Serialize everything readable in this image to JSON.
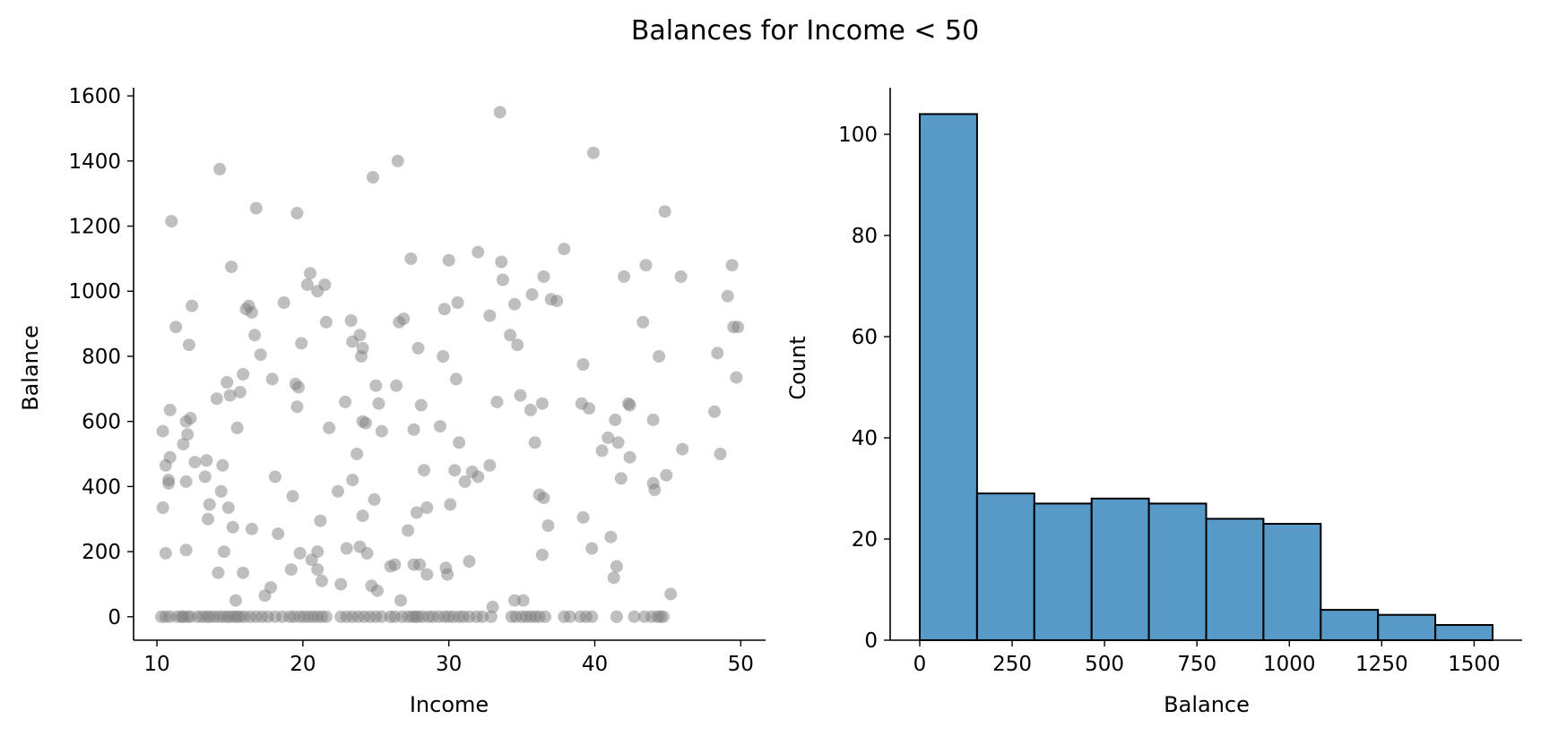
{
  "figure_title": "Balances for Income < 50",
  "chart_data": [
    {
      "type": "scatter",
      "xlabel": "Income",
      "ylabel": "Balance",
      "xlim": [
        8.4,
        51.7
      ],
      "ylim": [
        -72,
        1625
      ],
      "xticks": [
        10,
        20,
        30,
        40,
        50
      ],
      "yticks": [
        0,
        200,
        400,
        600,
        800,
        1000,
        1200,
        1400,
        1600
      ],
      "point_color": "#808080",
      "point_opacity": 0.5,
      "grid": false,
      "points": [
        [
          10.4,
          570
        ],
        [
          10.4,
          335
        ],
        [
          10.6,
          465
        ],
        [
          10.6,
          195
        ],
        [
          10.8,
          420
        ],
        [
          10.8,
          410
        ],
        [
          10.9,
          490
        ],
        [
          10.9,
          635
        ],
        [
          11.0,
          1215
        ],
        [
          11.3,
          890
        ],
        [
          11.8,
          530
        ],
        [
          12.0,
          600
        ],
        [
          12.0,
          415
        ],
        [
          12.0,
          205
        ],
        [
          12.1,
          560
        ],
        [
          12.2,
          835
        ],
        [
          12.3,
          610
        ],
        [
          12.4,
          955
        ],
        [
          12.6,
          475
        ],
        [
          13.3,
          430
        ],
        [
          13.4,
          480
        ],
        [
          13.5,
          300
        ],
        [
          13.6,
          345
        ],
        [
          14.1,
          670
        ],
        [
          14.2,
          135
        ],
        [
          14.3,
          1375
        ],
        [
          14.4,
          385
        ],
        [
          14.5,
          465
        ],
        [
          14.6,
          200
        ],
        [
          14.8,
          720
        ],
        [
          14.9,
          335
        ],
        [
          15.0,
          680
        ],
        [
          15.1,
          1075
        ],
        [
          15.2,
          275
        ],
        [
          15.4,
          50
        ],
        [
          15.5,
          580
        ],
        [
          15.7,
          690
        ],
        [
          15.9,
          745
        ],
        [
          15.9,
          135
        ],
        [
          16.1,
          945
        ],
        [
          16.3,
          955
        ],
        [
          16.5,
          935
        ],
        [
          16.5,
          270
        ],
        [
          16.7,
          865
        ],
        [
          16.8,
          1255
        ],
        [
          17.1,
          805
        ],
        [
          17.4,
          65
        ],
        [
          17.8,
          90
        ],
        [
          17.9,
          730
        ],
        [
          18.1,
          430
        ],
        [
          18.3,
          255
        ],
        [
          18.7,
          965
        ],
        [
          19.2,
          145
        ],
        [
          19.3,
          370
        ],
        [
          19.5,
          715
        ],
        [
          19.6,
          1240
        ],
        [
          19.6,
          645
        ],
        [
          19.7,
          705
        ],
        [
          19.8,
          195
        ],
        [
          19.9,
          840
        ],
        [
          20.3,
          1020
        ],
        [
          20.5,
          1055
        ],
        [
          20.6,
          175
        ],
        [
          21.0,
          1000
        ],
        [
          21.0,
          200
        ],
        [
          21.0,
          145
        ],
        [
          21.2,
          295
        ],
        [
          21.3,
          110
        ],
        [
          21.5,
          1020
        ],
        [
          21.6,
          905
        ],
        [
          21.8,
          580
        ],
        [
          22.4,
          385
        ],
        [
          22.6,
          100
        ],
        [
          22.9,
          660
        ],
        [
          23.0,
          210
        ],
        [
          23.3,
          910
        ],
        [
          23.4,
          420
        ],
        [
          23.4,
          845
        ],
        [
          23.7,
          500
        ],
        [
          23.9,
          865
        ],
        [
          23.9,
          215
        ],
        [
          24.0,
          800
        ],
        [
          24.1,
          825
        ],
        [
          24.1,
          600
        ],
        [
          24.1,
          310
        ],
        [
          24.3,
          595
        ],
        [
          24.4,
          195
        ],
        [
          24.7,
          95
        ],
        [
          24.8,
          1350
        ],
        [
          24.9,
          360
        ],
        [
          25.0,
          710
        ],
        [
          25.1,
          80
        ],
        [
          25.2,
          655
        ],
        [
          25.4,
          570
        ],
        [
          26.0,
          155
        ],
        [
          26.3,
          160
        ],
        [
          26.4,
          710
        ],
        [
          26.5,
          1400
        ],
        [
          26.6,
          905
        ],
        [
          26.7,
          50
        ],
        [
          26.9,
          915
        ],
        [
          27.2,
          265
        ],
        [
          27.4,
          1100
        ],
        [
          27.6,
          575
        ],
        [
          27.6,
          160
        ],
        [
          27.8,
          320
        ],
        [
          27.9,
          825
        ],
        [
          28.0,
          160
        ],
        [
          28.1,
          650
        ],
        [
          28.3,
          450
        ],
        [
          28.5,
          130
        ],
        [
          28.5,
          335
        ],
        [
          29.4,
          585
        ],
        [
          29.6,
          800
        ],
        [
          29.7,
          945
        ],
        [
          29.8,
          150
        ],
        [
          29.9,
          130
        ],
        [
          30.0,
          1095
        ],
        [
          30.1,
          345
        ],
        [
          30.4,
          450
        ],
        [
          30.5,
          730
        ],
        [
          30.6,
          965
        ],
        [
          30.7,
          535
        ],
        [
          31.1,
          415
        ],
        [
          31.4,
          170
        ],
        [
          31.6,
          445
        ],
        [
          32.0,
          430
        ],
        [
          32.0,
          1120
        ],
        [
          32.8,
          925
        ],
        [
          32.8,
          465
        ],
        [
          33.0,
          30
        ],
        [
          33.3,
          660
        ],
        [
          33.5,
          1550
        ],
        [
          33.6,
          1090
        ],
        [
          33.7,
          1035
        ],
        [
          34.2,
          865
        ],
        [
          34.5,
          960
        ],
        [
          34.5,
          50
        ],
        [
          34.7,
          835
        ],
        [
          34.9,
          680
        ],
        [
          35.1,
          50
        ],
        [
          35.6,
          635
        ],
        [
          35.7,
          990
        ],
        [
          35.9,
          535
        ],
        [
          36.2,
          375
        ],
        [
          36.4,
          190
        ],
        [
          36.4,
          655
        ],
        [
          36.5,
          1045
        ],
        [
          36.5,
          365
        ],
        [
          36.8,
          280
        ],
        [
          37.0,
          975
        ],
        [
          37.4,
          970
        ],
        [
          37.9,
          1130
        ],
        [
          39.1,
          655
        ],
        [
          39.2,
          775
        ],
        [
          39.2,
          305
        ],
        [
          39.6,
          640
        ],
        [
          39.8,
          210
        ],
        [
          39.9,
          1425
        ],
        [
          40.5,
          510
        ],
        [
          40.9,
          550
        ],
        [
          41.1,
          245
        ],
        [
          41.3,
          120
        ],
        [
          41.4,
          605
        ],
        [
          41.5,
          155
        ],
        [
          41.6,
          535
        ],
        [
          41.8,
          425
        ],
        [
          42.0,
          1045
        ],
        [
          42.3,
          655
        ],
        [
          42.4,
          650
        ],
        [
          42.4,
          490
        ],
        [
          43.3,
          905
        ],
        [
          43.5,
          1080
        ],
        [
          44.0,
          605
        ],
        [
          44.0,
          410
        ],
        [
          44.1,
          390
        ],
        [
          44.4,
          800
        ],
        [
          44.8,
          1245
        ],
        [
          44.9,
          435
        ],
        [
          45.2,
          70
        ],
        [
          45.9,
          1045
        ],
        [
          46.0,
          515
        ],
        [
          48.2,
          630
        ],
        [
          48.4,
          810
        ],
        [
          48.6,
          500
        ],
        [
          49.1,
          985
        ],
        [
          49.4,
          1080
        ],
        [
          49.5,
          890
        ],
        [
          49.7,
          735
        ],
        [
          49.8,
          890
        ],
        [
          10.3,
          0
        ],
        [
          10.6,
          0
        ],
        [
          10.9,
          0
        ],
        [
          11.4,
          0
        ],
        [
          11.7,
          0
        ],
        [
          11.8,
          0
        ],
        [
          12.1,
          0
        ],
        [
          12.3,
          0
        ],
        [
          12.8,
          0
        ],
        [
          13.1,
          0
        ],
        [
          13.4,
          0
        ],
        [
          13.6,
          0
        ],
        [
          13.9,
          0
        ],
        [
          14.2,
          0
        ],
        [
          14.5,
          0
        ],
        [
          14.8,
          0
        ],
        [
          15.0,
          0
        ],
        [
          15.3,
          0
        ],
        [
          15.5,
          0
        ],
        [
          15.7,
          0
        ],
        [
          16.0,
          0
        ],
        [
          16.4,
          0
        ],
        [
          16.8,
          0
        ],
        [
          17.2,
          0
        ],
        [
          17.6,
          0
        ],
        [
          18.1,
          0
        ],
        [
          18.6,
          0
        ],
        [
          19.1,
          0
        ],
        [
          19.4,
          0
        ],
        [
          19.8,
          0
        ],
        [
          20.1,
          0
        ],
        [
          20.4,
          0
        ],
        [
          20.7,
          0
        ],
        [
          21.0,
          0
        ],
        [
          21.3,
          0
        ],
        [
          21.6,
          0
        ],
        [
          22.6,
          0
        ],
        [
          23.0,
          0
        ],
        [
          23.4,
          0
        ],
        [
          23.8,
          0
        ],
        [
          24.2,
          0
        ],
        [
          24.6,
          0
        ],
        [
          25.0,
          0
        ],
        [
          25.4,
          0
        ],
        [
          26.0,
          0
        ],
        [
          26.3,
          0
        ],
        [
          26.8,
          0
        ],
        [
          27.2,
          0
        ],
        [
          27.5,
          0
        ],
        [
          27.7,
          0
        ],
        [
          27.9,
          0
        ],
        [
          28.2,
          0
        ],
        [
          28.6,
          0
        ],
        [
          28.9,
          0
        ],
        [
          29.3,
          0
        ],
        [
          29.7,
          0
        ],
        [
          30.0,
          0
        ],
        [
          30.3,
          0
        ],
        [
          30.7,
          0
        ],
        [
          31.0,
          0
        ],
        [
          31.4,
          0
        ],
        [
          31.9,
          0
        ],
        [
          32.3,
          0
        ],
        [
          32.9,
          0
        ],
        [
          34.3,
          0
        ],
        [
          34.6,
          0
        ],
        [
          35.0,
          0
        ],
        [
          35.3,
          0
        ],
        [
          35.6,
          0
        ],
        [
          35.9,
          0
        ],
        [
          36.2,
          0
        ],
        [
          36.6,
          0
        ],
        [
          37.9,
          0
        ],
        [
          38.3,
          0
        ],
        [
          39.0,
          0
        ],
        [
          39.4,
          0
        ],
        [
          39.8,
          0
        ],
        [
          41.5,
          0
        ],
        [
          42.7,
          0
        ],
        [
          43.4,
          0
        ],
        [
          43.9,
          0
        ],
        [
          44.3,
          0
        ],
        [
          44.5,
          0
        ],
        [
          44.7,
          0
        ]
      ]
    },
    {
      "type": "bar",
      "subtype": "histogram",
      "xlabel": "Balance",
      "ylabel": "Count",
      "bin_edges": [
        0,
        155,
        310,
        465,
        620,
        775,
        930,
        1085,
        1240,
        1395,
        1550
      ],
      "values": [
        104,
        29,
        27,
        28,
        27,
        24,
        23,
        6,
        5,
        3
      ],
      "xlim": [
        -80,
        1630
      ],
      "ylim": [
        0,
        109.2
      ],
      "xticks": [
        0,
        250,
        500,
        750,
        1000,
        1250,
        1500
      ],
      "yticks": [
        0,
        20,
        40,
        60,
        80,
        100
      ],
      "bar_color": "#5799c7",
      "edge_color": "#000000",
      "grid": false
    }
  ]
}
